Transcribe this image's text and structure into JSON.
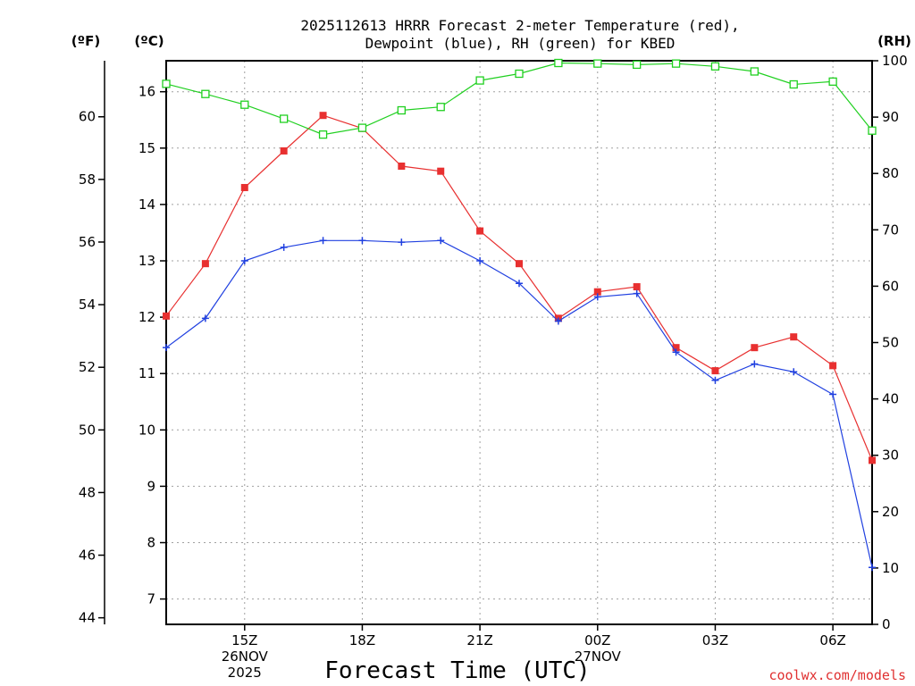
{
  "chart_data": {
    "type": "line",
    "title_line1": "2025112613 HRRR Forecast 2-meter Temperature (red),",
    "title_line2": "Dewpoint (blue), RH (green) for KBED",
    "xlabel": "Forecast Time (UTC)",
    "credit": "coolwx.com/models",
    "axis_labels": {
      "fahrenheit": "(ºF)",
      "celsius": "(ºC)",
      "rh": "(RH)"
    },
    "x_hours": [
      13,
      14,
      15,
      16,
      17,
      18,
      19,
      20,
      21,
      22,
      23,
      24,
      25,
      26,
      27,
      28,
      29,
      30,
      31
    ],
    "x_ticks": [
      {
        "hour": 15,
        "lines": [
          "15Z",
          "26NOV",
          "2025"
        ]
      },
      {
        "hour": 18,
        "lines": [
          "18Z"
        ]
      },
      {
        "hour": 21,
        "lines": [
          "21Z"
        ]
      },
      {
        "hour": 24,
        "lines": [
          "00Z",
          "27NOV"
        ]
      },
      {
        "hour": 27,
        "lines": [
          "03Z"
        ]
      },
      {
        "hour": 30,
        "lines": [
          "06Z"
        ]
      }
    ],
    "celsius_range": [
      6.55,
      16.55
    ],
    "celsius_ticks": [
      7,
      8,
      9,
      10,
      11,
      12,
      13,
      14,
      15,
      16
    ],
    "fahrenheit_ticks": [
      44,
      46,
      48,
      50,
      52,
      54,
      56,
      58,
      60
    ],
    "rh_range": [
      0,
      100
    ],
    "rh_ticks": [
      0,
      10,
      20,
      30,
      40,
      50,
      60,
      70,
      80,
      90,
      100
    ],
    "series": [
      {
        "name": "Temperature",
        "axis": "celsius",
        "color": "#e83030",
        "marker": "filled-square",
        "values": [
          12.02,
          12.95,
          14.3,
          14.95,
          15.58,
          15.35,
          14.68,
          14.59,
          13.53,
          12.95,
          11.98,
          12.45,
          12.54,
          11.46,
          11.05,
          11.46,
          11.65,
          11.14,
          9.46
        ]
      },
      {
        "name": "Dewpoint",
        "axis": "celsius",
        "color": "#2040e0",
        "marker": "plus",
        "values": [
          11.46,
          11.98,
          13.0,
          13.24,
          13.36,
          13.36,
          13.33,
          13.36,
          13.0,
          12.6,
          11.93,
          12.36,
          12.42,
          11.38,
          10.88,
          11.17,
          11.03,
          10.63,
          7.56
        ]
      },
      {
        "name": "RH",
        "axis": "rh",
        "color": "#20d020",
        "marker": "open-square",
        "values": [
          95.9,
          94.1,
          92.2,
          89.7,
          86.9,
          88.1,
          91.2,
          91.8,
          96.5,
          97.7,
          99.6,
          99.5,
          99.3,
          99.5,
          99.0,
          98.1,
          95.8,
          96.3,
          87.6
        ]
      }
    ]
  }
}
